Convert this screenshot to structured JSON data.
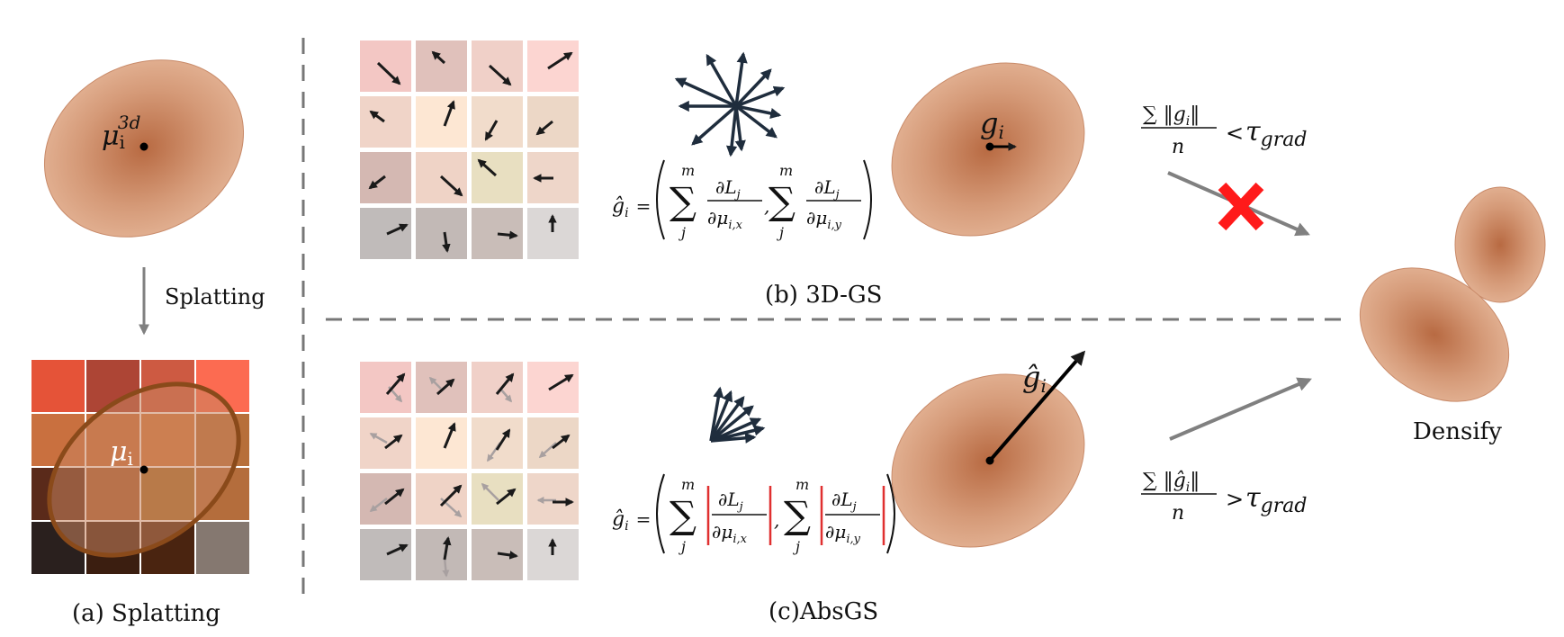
{
  "captions": {
    "splatting": "(a) Splatting",
    "gs3d": "(b) 3D-GS",
    "absgs": "(c)AbsGS",
    "splat_arrow": "Splatting",
    "densify": "Densify"
  },
  "labels": {
    "mu_3d": "μ",
    "mu_3d_sub": "i",
    "mu_3d_sup": "3d",
    "mu_2d": "μ",
    "mu_2d_sub": "i",
    "g_i": "g",
    "g_i_sub": "i",
    "g_hat": "ĝ",
    "g_hat_sub": "i"
  },
  "formulas": {
    "lhs": "ĝ",
    "lhs_sub": "i",
    "equals": "=",
    "sum_top": "m",
    "sum_bottom": "j",
    "partial_num": "∂L",
    "partial_num_sub": "j",
    "partial_den_x": "∂μ",
    "partial_den_x_sub": "i,x",
    "partial_den_y": "∂μ",
    "partial_den_y_sub": "i,y",
    "comma": ","
  },
  "conditions": {
    "top_num": "∑ ‖g",
    "top_num_sub": "i",
    "top_num_end": "‖",
    "den": "n",
    "top_rel": "<",
    "tau": "τ",
    "tau_sub": "grad",
    "bottom_num": "∑ ‖ĝ",
    "bottom_rel": ">"
  },
  "colors": {
    "gaussian": "#c9835f",
    "cross": "#ff1a1a",
    "arrow_grey": "#808080",
    "vector": "#1f2d3d",
    "abs_bar": "#e03030",
    "ellipse_outline": "#8a4a1a"
  },
  "icons": {
    "reject": "cross-icon",
    "accept": "arrow-icon"
  }
}
